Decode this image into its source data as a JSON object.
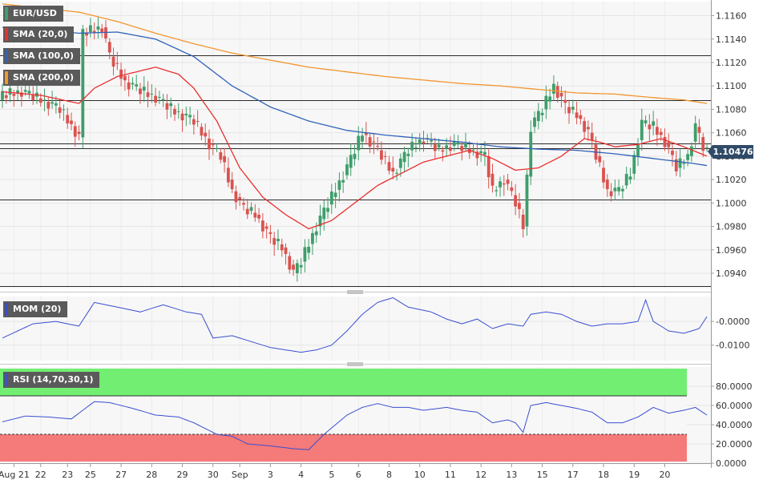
{
  "legend": {
    "symbol": "EUR/USD",
    "sma20": "SMA (20,0)",
    "sma100": "SMA (100,0)",
    "sma200": "SMA (200,0)",
    "mom": "MOM (20)",
    "rsi": "RSI (14,70,30,1)"
  },
  "price_label": "1.10476",
  "colors": {
    "bull": "#3e9e6b",
    "bear": "#d9534f",
    "sma20": "#e8302e",
    "sma100": "#2f62b8",
    "sma200": "#f2952f",
    "mom_line": "#3a4fd0",
    "rsi_line": "#3a4fd0",
    "rsi_overbought_fill": "#72ee72",
    "rsi_oversold_fill": "#f57a7a",
    "price_box": "#2f4a67"
  },
  "chart_data": [
    {
      "type": "candlestick",
      "name": "EUR/USD",
      "timeframe": "4h",
      "y_ticks": [
        "1.1160",
        "1.1140",
        "1.1120",
        "1.1100",
        "1.1080",
        "1.1060",
        "1.1040",
        "1.1020",
        "1.1000",
        "1.0980",
        "1.0960",
        "1.0940"
      ],
      "ylim": [
        1.0927,
        1.1172
      ],
      "x_ticks": [
        "Aug 21",
        "22",
        "23",
        "25",
        "27",
        "28",
        "29",
        "30",
        "Sep",
        "3",
        "4",
        "5",
        "6",
        "8",
        "10",
        "11",
        "12",
        "13",
        "15",
        "17",
        "18",
        "19",
        "20"
      ],
      "horizontal_levels": [
        1.1126,
        1.1088,
        1.1051,
        1.1047,
        1.1003,
        1.0929
      ],
      "last_price": 1.10476,
      "anchors": {
        "close": [
          [
            0,
            1.1092
          ],
          [
            5,
            1.1095
          ],
          [
            10,
            1.1088
          ],
          [
            15,
            1.108
          ],
          [
            20,
            1.1056
          ],
          [
            21,
            1.1145
          ],
          [
            24,
            1.1148
          ],
          [
            26,
            1.115
          ],
          [
            28,
            1.1125
          ],
          [
            32,
            1.1103
          ],
          [
            36,
            1.1096
          ],
          [
            40,
            1.109
          ],
          [
            45,
            1.1078
          ],
          [
            50,
            1.107
          ],
          [
            54,
            1.105
          ],
          [
            57,
            1.104
          ],
          [
            60,
            1.101
          ],
          [
            63,
            1.0995
          ],
          [
            66,
            1.099
          ],
          [
            70,
            1.097
          ],
          [
            73,
            1.0962
          ],
          [
            76,
            1.094
          ],
          [
            78,
            1.095
          ],
          [
            82,
            1.098
          ],
          [
            86,
            1.1005
          ],
          [
            90,
            1.103
          ],
          [
            94,
            1.106
          ],
          [
            98,
            1.1045
          ],
          [
            102,
            1.1025
          ],
          [
            106,
            1.1045
          ],
          [
            110,
            1.1055
          ],
          [
            114,
            1.1045
          ],
          [
            118,
            1.105
          ],
          [
            122,
            1.1045
          ],
          [
            126,
            1.104
          ],
          [
            128,
            1.101
          ],
          [
            131,
            1.102
          ],
          [
            134,
            1.1
          ],
          [
            136,
            1.098
          ],
          [
            138,
            1.1065
          ],
          [
            141,
            1.108
          ],
          [
            144,
            1.11
          ],
          [
            147,
            1.1082
          ],
          [
            150,
            1.1075
          ],
          [
            153,
            1.106
          ],
          [
            155,
            1.104
          ],
          [
            158,
            1.101
          ],
          [
            161,
            1.101
          ],
          [
            164,
            1.1025
          ],
          [
            167,
            1.1068
          ],
          [
            170,
            1.1065
          ],
          [
            173,
            1.1052
          ],
          [
            176,
            1.103
          ],
          [
            179,
            1.104
          ],
          [
            181,
            1.1065
          ],
          [
            183,
            1.10476
          ]
        ],
        "sma20": [
          [
            0,
            1.1095
          ],
          [
            10,
            1.1092
          ],
          [
            20,
            1.1085
          ],
          [
            24,
            1.1098
          ],
          [
            30,
            1.1108
          ],
          [
            40,
            1.1116
          ],
          [
            46,
            1.111
          ],
          [
            50,
            1.1098
          ],
          [
            56,
            1.107
          ],
          [
            62,
            1.103
          ],
          [
            68,
            1.1005
          ],
          [
            74,
            1.099
          ],
          [
            80,
            1.0978
          ],
          [
            86,
            1.0985
          ],
          [
            92,
            1.1
          ],
          [
            98,
            1.1015
          ],
          [
            104,
            1.1025
          ],
          [
            110,
            1.1035
          ],
          [
            116,
            1.104
          ],
          [
            122,
            1.1045
          ],
          [
            128,
            1.1038
          ],
          [
            134,
            1.1028
          ],
          [
            140,
            1.103
          ],
          [
            146,
            1.104
          ],
          [
            152,
            1.1055
          ],
          [
            156,
            1.1052
          ],
          [
            160,
            1.1048
          ],
          [
            166,
            1.105
          ],
          [
            172,
            1.1055
          ],
          [
            178,
            1.1048
          ],
          [
            184,
            1.104
          ]
        ],
        "sma100": [
          [
            0,
            1.115
          ],
          [
            10,
            1.1148
          ],
          [
            20,
            1.1145
          ],
          [
            30,
            1.1146
          ],
          [
            40,
            1.114
          ],
          [
            50,
            1.1125
          ],
          [
            60,
            1.11
          ],
          [
            70,
            1.1082
          ],
          [
            80,
            1.107
          ],
          [
            90,
            1.1062
          ],
          [
            100,
            1.1058
          ],
          [
            110,
            1.1055
          ],
          [
            120,
            1.1052
          ],
          [
            130,
            1.1048
          ],
          [
            140,
            1.1046
          ],
          [
            150,
            1.1045
          ],
          [
            160,
            1.1042
          ],
          [
            170,
            1.1038
          ],
          [
            180,
            1.1034
          ],
          [
            184,
            1.1032
          ]
        ],
        "sma200": [
          [
            0,
            1.117
          ],
          [
            20,
            1.1163
          ],
          [
            30,
            1.1155
          ],
          [
            40,
            1.1145
          ],
          [
            50,
            1.1136
          ],
          [
            60,
            1.1128
          ],
          [
            70,
            1.1122
          ],
          [
            80,
            1.1116
          ],
          [
            90,
            1.1112
          ],
          [
            100,
            1.1108
          ],
          [
            110,
            1.1105
          ],
          [
            120,
            1.1102
          ],
          [
            130,
            1.11
          ],
          [
            140,
            1.1097
          ],
          [
            150,
            1.1094
          ],
          [
            160,
            1.1093
          ],
          [
            170,
            1.109
          ],
          [
            178,
            1.1088
          ],
          [
            184,
            1.1085
          ]
        ]
      }
    },
    {
      "type": "line",
      "name": "MOM (20)",
      "y_ticks": [
        "-0.0000",
        "-0.0100"
      ],
      "ylim": [
        -0.0165,
        0.0105
      ],
      "anchors": [
        [
          0,
          -0.007
        ],
        [
          8,
          -0.001
        ],
        [
          14,
          0.0
        ],
        [
          20,
          -0.002
        ],
        [
          24,
          0.008
        ],
        [
          30,
          0.006
        ],
        [
          36,
          0.004
        ],
        [
          42,
          0.007
        ],
        [
          48,
          0.004
        ],
        [
          52,
          0.003
        ],
        [
          55,
          -0.007
        ],
        [
          60,
          -0.006
        ],
        [
          66,
          -0.009
        ],
        [
          70,
          -0.011
        ],
        [
          74,
          -0.012
        ],
        [
          78,
          -0.013
        ],
        [
          82,
          -0.012
        ],
        [
          86,
          -0.01
        ],
        [
          90,
          -0.004
        ],
        [
          94,
          0.003
        ],
        [
          98,
          0.008
        ],
        [
          102,
          0.01
        ],
        [
          106,
          0.006
        ],
        [
          112,
          0.004
        ],
        [
          116,
          0.001
        ],
        [
          120,
          -0.001
        ],
        [
          124,
          0.001
        ],
        [
          128,
          -0.003
        ],
        [
          132,
          -0.001
        ],
        [
          136,
          -0.002
        ],
        [
          138,
          0.003
        ],
        [
          142,
          0.004
        ],
        [
          146,
          0.003
        ],
        [
          150,
          0.0
        ],
        [
          154,
          -0.002
        ],
        [
          158,
          -0.001
        ],
        [
          162,
          -0.001
        ],
        [
          166,
          0.0
        ],
        [
          168,
          0.009
        ],
        [
          170,
          0.0
        ],
        [
          174,
          -0.004
        ],
        [
          178,
          -0.005
        ],
        [
          182,
          -0.003
        ],
        [
          184,
          0.002
        ]
      ]
    },
    {
      "type": "line",
      "name": "RSI (14,70,30,1)",
      "y_ticks": [
        "80.0000",
        "60.0000",
        "40.0000",
        "20.0000",
        "0.0000"
      ],
      "ylim": [
        0,
        100
      ],
      "bands": {
        "overbought": 70,
        "oversold": 30
      },
      "anchors": [
        [
          0,
          43
        ],
        [
          6,
          49
        ],
        [
          12,
          48
        ],
        [
          18,
          46
        ],
        [
          24,
          64
        ],
        [
          28,
          63
        ],
        [
          34,
          57
        ],
        [
          40,
          50
        ],
        [
          46,
          48
        ],
        [
          50,
          42
        ],
        [
          56,
          30
        ],
        [
          60,
          28
        ],
        [
          64,
          20
        ],
        [
          70,
          18
        ],
        [
          76,
          15
        ],
        [
          80,
          14
        ],
        [
          84,
          30
        ],
        [
          90,
          50
        ],
        [
          94,
          58
        ],
        [
          98,
          62
        ],
        [
          102,
          58
        ],
        [
          106,
          58
        ],
        [
          110,
          55
        ],
        [
          116,
          58
        ],
        [
          120,
          55
        ],
        [
          124,
          53
        ],
        [
          128,
          42
        ],
        [
          132,
          45
        ],
        [
          134,
          42
        ],
        [
          136,
          32
        ],
        [
          138,
          60
        ],
        [
          142,
          63
        ],
        [
          146,
          60
        ],
        [
          150,
          57
        ],
        [
          154,
          53
        ],
        [
          158,
          42
        ],
        [
          162,
          42
        ],
        [
          166,
          48
        ],
        [
          170,
          58
        ],
        [
          174,
          52
        ],
        [
          178,
          55
        ],
        [
          181,
          58
        ],
        [
          184,
          50
        ]
      ]
    }
  ]
}
